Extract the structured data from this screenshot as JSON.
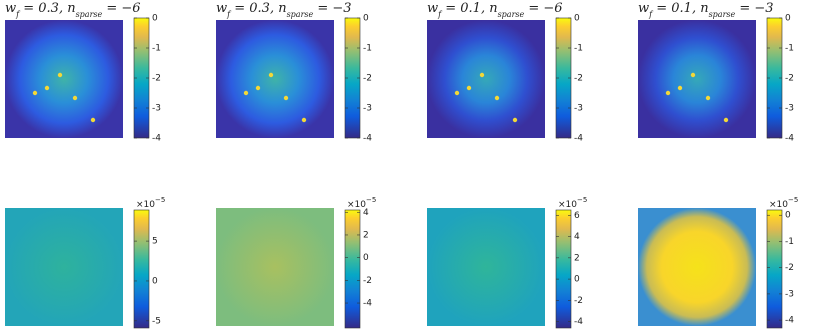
{
  "chart_data": [
    {
      "type": "heatmap",
      "title": [
        "w",
        "f",
        " = 0.3, n",
        "sparse",
        " = −6"
      ],
      "colorbar": {
        "ylim": [
          -4,
          0
        ],
        "yticks": [
          0,
          -1,
          -2,
          -3,
          -4
        ]
      }
    },
    {
      "type": "heatmap",
      "title": [
        "w",
        "f",
        " = 0.3, n",
        "sparse",
        " = −3"
      ],
      "colorbar": {
        "ylim": [
          -4,
          0
        ],
        "yticks": [
          0,
          -1,
          -2,
          -3,
          -4
        ]
      }
    },
    {
      "type": "heatmap",
      "title": [
        "w",
        "f",
        " = 0.1, n",
        "sparse",
        " = −6"
      ],
      "colorbar": {
        "ylim": [
          -4,
          0
        ],
        "yticks": [
          0,
          -1,
          -2,
          -3,
          -4
        ]
      }
    },
    {
      "type": "heatmap",
      "title": [
        "w",
        "f",
        " = 0.1, n",
        "sparse",
        " = −3"
      ],
      "colorbar": {
        "ylim": [
          -4,
          0
        ],
        "yticks": [
          0,
          -1,
          -2,
          -3,
          -4
        ]
      }
    },
    {
      "type": "heatmap",
      "colorbar": {
        "ylim": [
          -5.9,
          8.9
        ],
        "yticks": [
          5,
          0,
          -5
        ],
        "exponent_label": [
          "×10",
          "−5"
        ]
      }
    },
    {
      "type": "heatmap",
      "colorbar": {
        "ylim": [
          -6.2,
          4.2
        ],
        "yticks": [
          4,
          2,
          0,
          -2,
          -4
        ],
        "exponent_label": [
          "×10",
          "−5"
        ]
      }
    },
    {
      "type": "heatmap",
      "colorbar": {
        "ylim": [
          -4.6,
          6.5
        ],
        "yticks": [
          6,
          4,
          2,
          0,
          -2,
          -4
        ],
        "exponent_label": [
          "×10",
          "−5"
        ]
      }
    },
    {
      "type": "heatmap",
      "colorbar": {
        "ylim": [
          -4.3,
          0.2
        ],
        "yticks": [
          0,
          -1,
          -2,
          -3,
          -4
        ],
        "exponent_label": [
          "×10",
          "−5"
        ]
      }
    }
  ]
}
